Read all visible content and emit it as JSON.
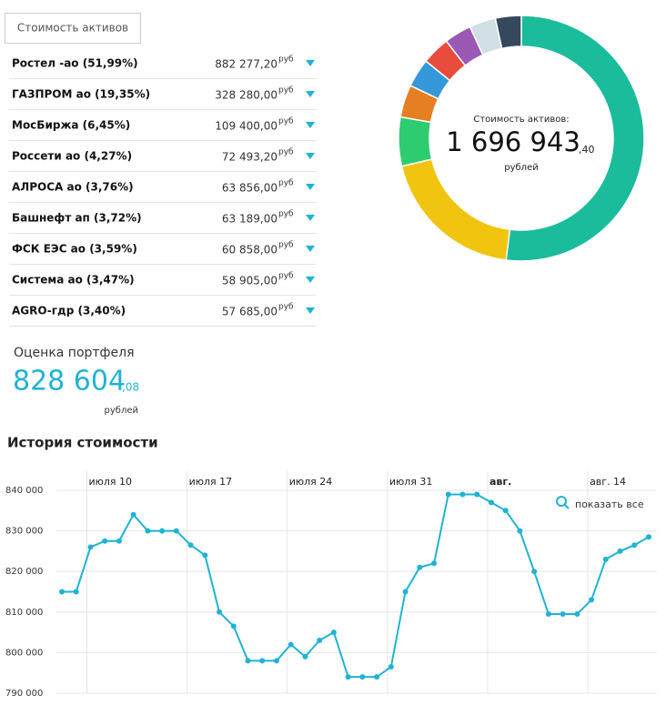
{
  "button": "Стоимость активов",
  "currency": "руб",
  "holdings": [
    {
      "amount": "882 277,20"
    },
    {
      "amount": "328 280,00"
    },
    {
      "amount": "109 400,00"
    },
    {
      "amount": "72 493,20"
    },
    {
      "amount": "63 856,00"
    },
    {
      "amount": "63 189,00"
    },
    {
      "amount": "60 858,00"
    },
    {
      "amount": "58 905,00"
    },
    {
      "amount": "57 685,00"
    }
  ],
  "portfolio": {
    "label": "Оценка портфеля",
    "integer": "828 604",
    "decimal": ",08",
    "unit": "рублей"
  },
  "history_title": "История стоимости",
  "chart_data": [
    {
      "type": "donut",
      "categories": [
        "Ростел -ао (51,99%)",
        "ГАЗПРОМ ао (19,35%)",
        "МосБиржа (6,45%)",
        "Россети ао (4,27%)",
        "АЛРОСА ао (3,76%)",
        "Башнефт ап (3,72%)",
        "ФСК ЕЭС ао (3,59%)",
        "Система ао (3,47%)",
        "AGRO-гдр (3,40%)"
      ],
      "values": [
        51.99,
        19.35,
        6.45,
        4.27,
        3.76,
        3.72,
        3.59,
        3.47,
        3.4
      ],
      "colors": [
        "#1abc9c",
        "#f1c40f",
        "#2ecc71",
        "#e67e22",
        "#3498db",
        "#e74c3c",
        "#9b59b6",
        "#d2dfe4",
        "#34495e"
      ],
      "center_label": "Стоимость активов:",
      "total_integer": "1 696 943",
      "total_decimal": ",40",
      "total_unit": "рублей"
    },
    {
      "type": "line",
      "color": "#1fb3d4",
      "zoom_label": "показать все",
      "x": [
        "07-08",
        "07-09",
        "07-10",
        "07-11",
        "07-12",
        "07-13",
        "07-14",
        "07-15",
        "07-16",
        "07-17",
        "07-18",
        "07-19",
        "07-20",
        "07-21",
        "07-22",
        "07-23",
        "07-24",
        "07-25",
        "07-26",
        "07-27",
        "07-28",
        "07-29",
        "07-30",
        "07-31",
        "08-01",
        "08-02",
        "08-03",
        "08-04",
        "08-05",
        "08-06",
        "08-07",
        "08-08",
        "08-09",
        "08-10",
        "08-11",
        "08-12",
        "08-13",
        "08-14",
        "08-15",
        "08-16",
        "08-17",
        "08-18"
      ],
      "values": [
        815000,
        815000,
        826000,
        827500,
        827500,
        834000,
        830000,
        830000,
        830000,
        826500,
        824000,
        810000,
        806500,
        798000,
        798000,
        798000,
        802000,
        799000,
        803000,
        805000,
        794000,
        794000,
        794000,
        796500,
        815000,
        821000,
        822000,
        839000,
        839000,
        839000,
        837000,
        835000,
        830000,
        820000,
        809500,
        809500,
        809500,
        813000,
        823000,
        825000,
        826500,
        828500
      ],
      "xlim": [
        "07-08",
        "08-18"
      ],
      "xticks": [
        {
          "value": "07-10",
          "label": "июля 10"
        },
        {
          "value": "07-17",
          "label": "июля 17"
        },
        {
          "value": "07-24",
          "label": "июля 24"
        },
        {
          "value": "07-31",
          "label": "июля 31"
        },
        {
          "value": "08-07",
          "label": "авг.",
          "bold": true
        },
        {
          "value": "08-14",
          "label": "авг. 14"
        }
      ],
      "ylim": [
        790000,
        840000
      ],
      "yticks": [
        {
          "value": 790000,
          "label": "790 000"
        },
        {
          "value": 800000,
          "label": "800 000"
        },
        {
          "value": 810000,
          "label": "810 000"
        },
        {
          "value": 820000,
          "label": "820 000"
        },
        {
          "value": 830000,
          "label": "830 000"
        },
        {
          "value": 840000,
          "label": "840 000"
        }
      ],
      "grid": true
    }
  ]
}
